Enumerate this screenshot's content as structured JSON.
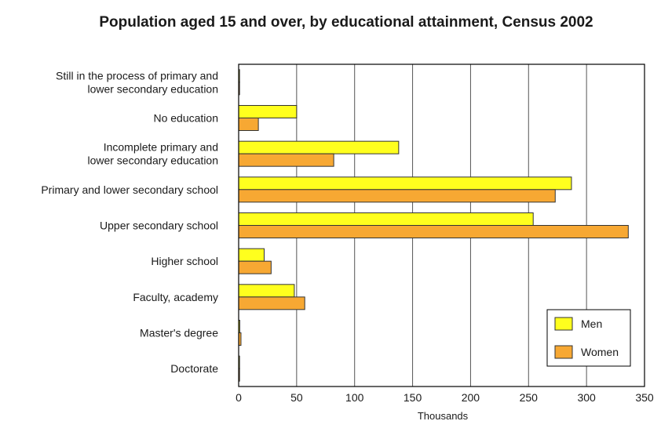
{
  "chart_data": {
    "type": "bar",
    "orientation": "horizontal",
    "title": "Population aged 15 and over, by educational attainment, Census 2002",
    "xlabel": "Thousands",
    "ylabel": "",
    "xlim": [
      0,
      350
    ],
    "x_ticks": [
      "0",
      "50",
      "100",
      "150",
      "200",
      "250",
      "300",
      "350"
    ],
    "grid": "vertical",
    "legend_position": "bottom-right",
    "categories": [
      [
        "Still in the process of primary and",
        "lower secondary education"
      ],
      [
        "No education"
      ],
      [
        "Incomplete primary and",
        "lower secondary education"
      ],
      [
        "Primary and lower secondary school"
      ],
      [
        "Upper secondary school"
      ],
      [
        "Higher school"
      ],
      [
        "Faculty, academy"
      ],
      [
        "Master's degree"
      ],
      [
        "Doctorate"
      ]
    ],
    "series": [
      {
        "name": "Men",
        "color": "#ffff1e",
        "values": [
          0.5,
          50,
          138,
          287,
          254,
          22,
          48,
          1,
          0.5
        ]
      },
      {
        "name": "Women",
        "color": "#f7a833",
        "values": [
          0.5,
          17,
          82,
          273,
          336,
          28,
          57,
          2,
          0.5
        ]
      }
    ]
  }
}
